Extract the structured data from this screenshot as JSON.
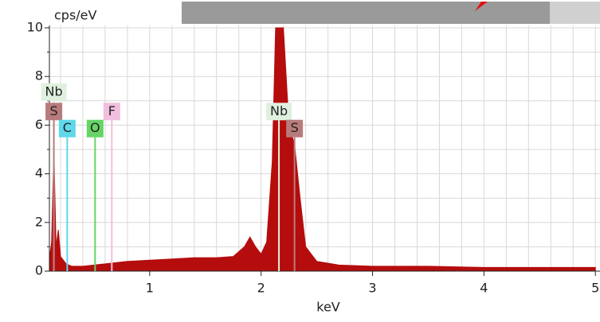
{
  "chart_data": {
    "type": "area",
    "y_label": "cps/eV",
    "x_label": "keV",
    "xlim": [
      0.1,
      5.02
    ],
    "ylim": [
      0,
      10
    ],
    "xticks": [
      1,
      2,
      3,
      4,
      5
    ],
    "yticks": [
      0,
      2,
      4,
      6,
      8,
      10
    ],
    "grid": true,
    "color": "#b50d0d",
    "x": [
      0.1,
      0.12,
      0.14,
      0.16,
      0.18,
      0.2,
      0.25,
      0.3,
      0.4,
      0.6,
      0.8,
      1.0,
      1.2,
      1.4,
      1.6,
      1.75,
      1.85,
      1.9,
      1.95,
      2.0,
      2.05,
      2.1,
      2.13,
      2.17,
      2.2,
      2.25,
      2.3,
      2.35,
      2.4,
      2.5,
      2.7,
      3.0,
      3.5,
      4.0,
      4.5,
      5.0
    ],
    "values": [
      0.5,
      1.2,
      5.0,
      1.0,
      1.7,
      0.6,
      0.3,
      0.2,
      0.2,
      0.3,
      0.4,
      0.45,
      0.5,
      0.55,
      0.55,
      0.6,
      1.0,
      1.4,
      1.0,
      0.7,
      1.2,
      4.5,
      10,
      10,
      10,
      6,
      5.2,
      3,
      1.0,
      0.4,
      0.25,
      0.2,
      0.2,
      0.15,
      0.15,
      0.15
    ],
    "markers": [
      {
        "label": "Nb",
        "x": 0.14,
        "y": 7.0,
        "color": "#dff0df"
      },
      {
        "label": "S",
        "x": 0.14,
        "y": 6.2,
        "color": "#b87b7b"
      },
      {
        "label": "C",
        "x": 0.26,
        "y": 5.5,
        "color": "#5fd8ea"
      },
      {
        "label": "O",
        "x": 0.51,
        "y": 5.5,
        "color": "#66d466"
      },
      {
        "label": "F",
        "x": 0.66,
        "y": 6.2,
        "color": "#f2bede"
      },
      {
        "label": "Nb",
        "x": 2.16,
        "y": 6.2,
        "color": "#dff0df"
      },
      {
        "label": "S",
        "x": 2.3,
        "y": 5.5,
        "color": "#b87b7b"
      }
    ]
  }
}
